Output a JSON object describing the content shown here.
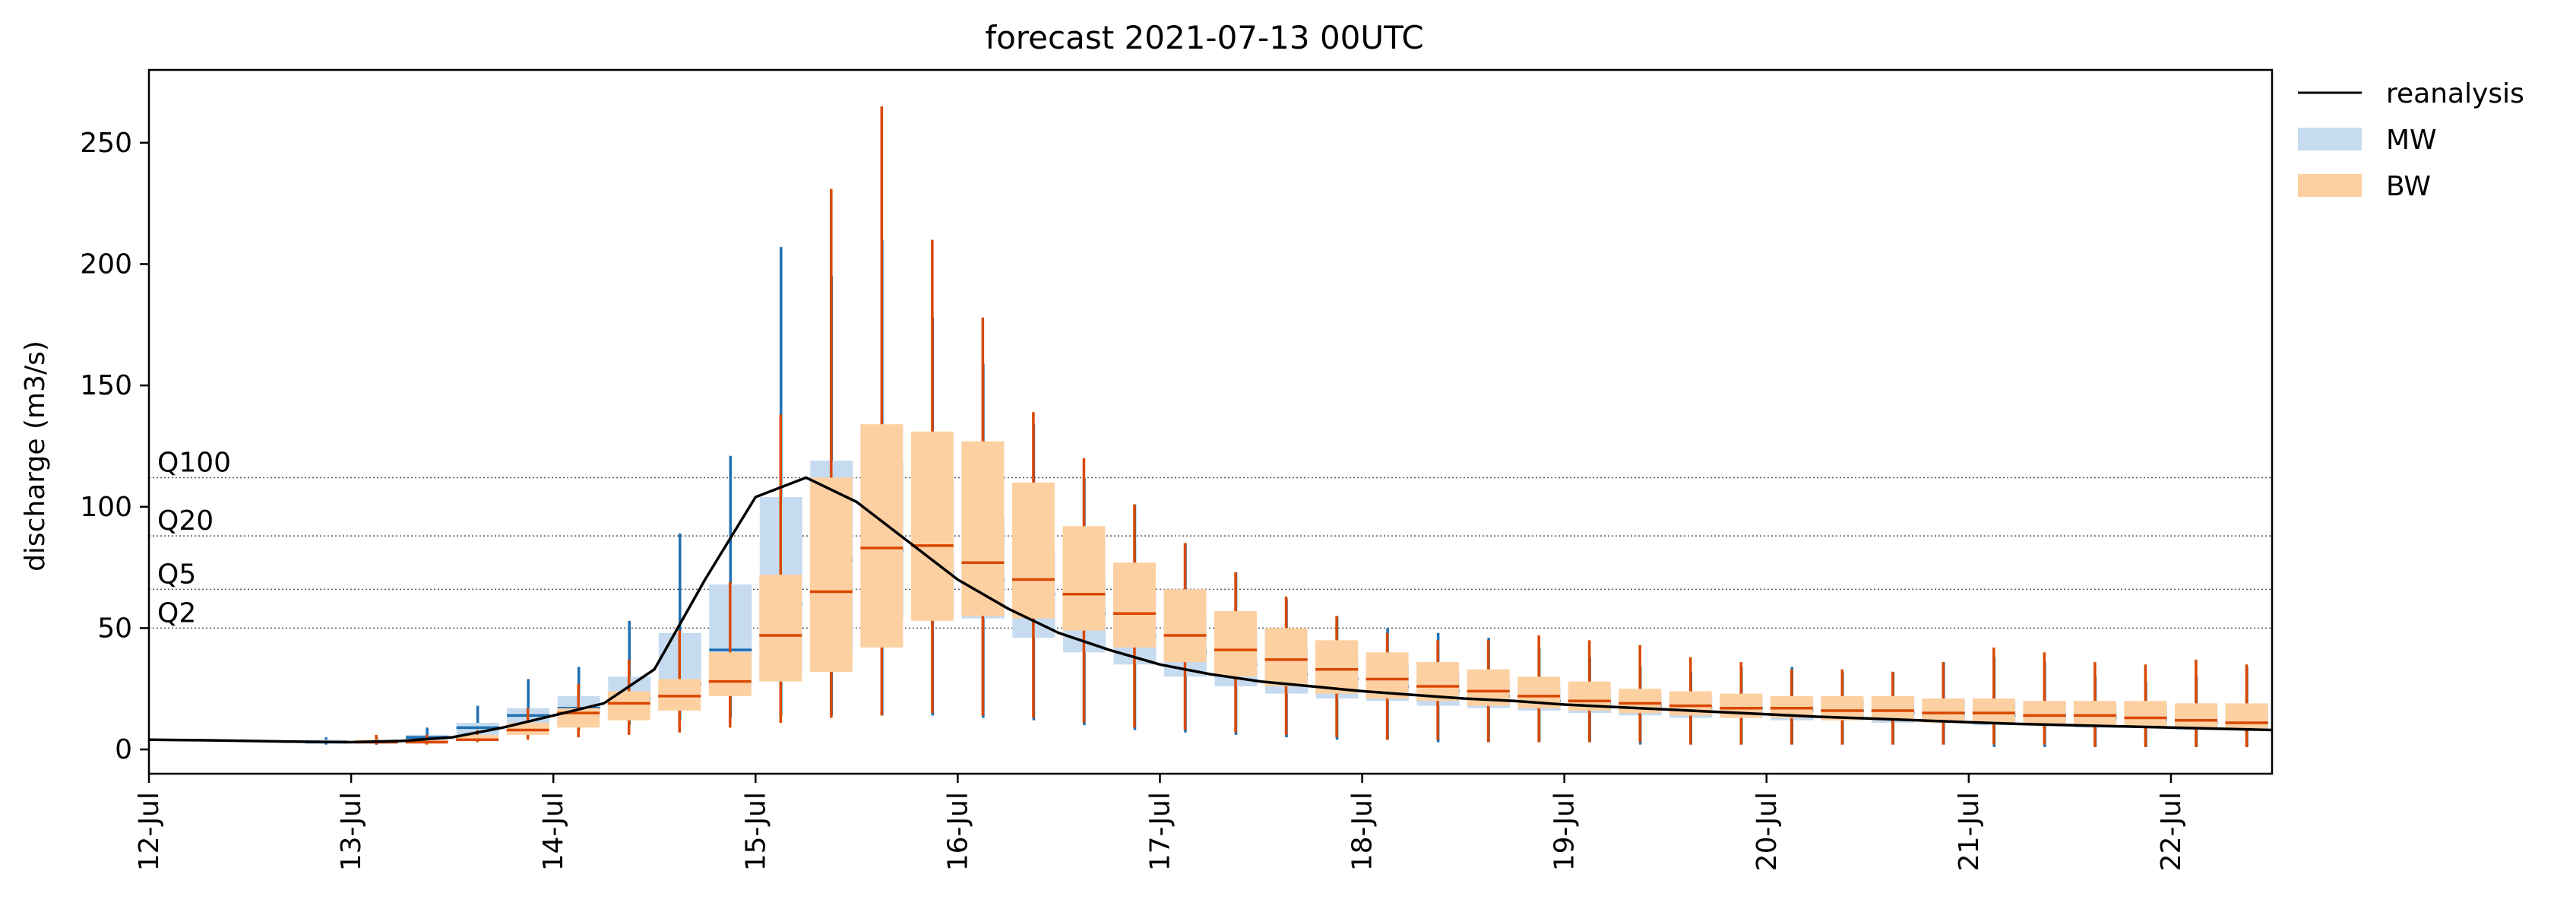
{
  "chart_data": {
    "type": "box",
    "title": "forecast 2021-07-13 00UTC",
    "xlabel": "",
    "ylabel": "discharge (m3/s)",
    "xlim": [
      "2021-07-12T00:00",
      "2021-07-22T12:00"
    ],
    "ylim": [
      -10,
      280
    ],
    "yticks": [
      0,
      50,
      100,
      150,
      200,
      250
    ],
    "xtick_labels": [
      "12-Jul",
      "13-Jul",
      "14-Jul",
      "15-Jul",
      "16-Jul",
      "17-Jul",
      "18-Jul",
      "19-Jul",
      "20-Jul",
      "21-Jul",
      "22-Jul"
    ],
    "xtick_dates": [
      "2021-07-12T00:00",
      "2021-07-13T00:00",
      "2021-07-14T00:00",
      "2021-07-15T00:00",
      "2021-07-16T00:00",
      "2021-07-17T00:00",
      "2021-07-18T00:00",
      "2021-07-19T00:00",
      "2021-07-20T00:00",
      "2021-07-21T00:00",
      "2021-07-22T00:00"
    ],
    "legend_position": "outside top-right",
    "colors": {
      "reanalysis": "#000000",
      "MW_box": "#c6dbef",
      "MW_line": "#1f6fb0",
      "BW_box": "#fdd0a2",
      "BW_line": "#d94801",
      "threshold": "#555555"
    },
    "thresholds": [
      {
        "label": "Q100",
        "value": 112
      },
      {
        "label": "Q20",
        "value": 88
      },
      {
        "label": "Q5",
        "value": 66
      },
      {
        "label": "Q2",
        "value": 50
      }
    ],
    "reanalysis": {
      "name": "reanalysis",
      "x": [
        "2021-07-12T00:00",
        "2021-07-12T06:00",
        "2021-07-12T12:00",
        "2021-07-12T18:00",
        "2021-07-13T00:00",
        "2021-07-13T06:00",
        "2021-07-13T12:00",
        "2021-07-13T18:00",
        "2021-07-14T00:00",
        "2021-07-14T06:00",
        "2021-07-14T12:00",
        "2021-07-14T18:00",
        "2021-07-15T00:00",
        "2021-07-15T06:00",
        "2021-07-15T12:00",
        "2021-07-15T18:00",
        "2021-07-16T00:00",
        "2021-07-16T06:00",
        "2021-07-16T12:00",
        "2021-07-16T18:00",
        "2021-07-17T00:00",
        "2021-07-17T06:00",
        "2021-07-17T12:00",
        "2021-07-17T18:00",
        "2021-07-18T00:00",
        "2021-07-18T06:00",
        "2021-07-18T12:00",
        "2021-07-18T18:00",
        "2021-07-19T00:00",
        "2021-07-19T06:00",
        "2021-07-19T12:00",
        "2021-07-19T18:00",
        "2021-07-20T00:00",
        "2021-07-20T06:00",
        "2021-07-20T12:00",
        "2021-07-20T18:00",
        "2021-07-21T00:00",
        "2021-07-21T06:00",
        "2021-07-21T12:00",
        "2021-07-21T18:00",
        "2021-07-22T00:00",
        "2021-07-22T06:00",
        "2021-07-22T12:00"
      ],
      "y": [
        4,
        3.8,
        3.5,
        3.2,
        3,
        3.5,
        5,
        9,
        14,
        19,
        33,
        70,
        104,
        112,
        102,
        86,
        70,
        58,
        48,
        41,
        35,
        31,
        28,
        26,
        24,
        22.5,
        21,
        20,
        18.5,
        17.5,
        16.5,
        15.5,
        14.5,
        13.5,
        12.8,
        12,
        11.2,
        10.5,
        10,
        9.5,
        9,
        8.5,
        8
      ]
    },
    "series": [
      {
        "name": "MW",
        "x": [
          "2021-07-13T00:00",
          "2021-07-13T06:00",
          "2021-07-13T12:00",
          "2021-07-13T18:00",
          "2021-07-14T00:00",
          "2021-07-14T06:00",
          "2021-07-14T12:00",
          "2021-07-14T18:00",
          "2021-07-15T00:00",
          "2021-07-15T06:00",
          "2021-07-15T12:00",
          "2021-07-15T18:00",
          "2021-07-16T00:00",
          "2021-07-16T06:00",
          "2021-07-16T12:00",
          "2021-07-16T18:00",
          "2021-07-17T00:00",
          "2021-07-17T06:00",
          "2021-07-17T12:00",
          "2021-07-17T18:00",
          "2021-07-18T00:00",
          "2021-07-18T06:00",
          "2021-07-18T12:00",
          "2021-07-18T18:00",
          "2021-07-19T00:00",
          "2021-07-19T06:00",
          "2021-07-19T12:00",
          "2021-07-19T18:00",
          "2021-07-20T00:00",
          "2021-07-20T06:00",
          "2021-07-20T12:00",
          "2021-07-20T18:00",
          "2021-07-21T00:00",
          "2021-07-21T06:00",
          "2021-07-21T12:00",
          "2021-07-21T18:00",
          "2021-07-22T00:00",
          "2021-07-22T06:00",
          "2021-07-22T12:00"
        ],
        "whislo": [
          2,
          2,
          3,
          4,
          6,
          8,
          10,
          12,
          13,
          14,
          14,
          14,
          14,
          13,
          12,
          10,
          8,
          7,
          6,
          5,
          4,
          4,
          3,
          3,
          3,
          3,
          2,
          2,
          2,
          2,
          2,
          2,
          2,
          1,
          1,
          1,
          1,
          1,
          1
        ],
        "q1": [
          3,
          3,
          4,
          6,
          10,
          13,
          18,
          22,
          26,
          32,
          40,
          53,
          55,
          54,
          46,
          40,
          35,
          30,
          26,
          23,
          21,
          20,
          18,
          17,
          16,
          15,
          14,
          13,
          13,
          12,
          12,
          11,
          11,
          10,
          10,
          9,
          9,
          8,
          8
        ],
        "median": [
          3,
          3,
          5,
          9,
          14,
          17,
          21,
          27,
          41,
          60,
          78,
          82,
          73,
          70,
          64,
          56,
          47,
          40,
          35,
          31,
          29,
          26,
          24,
          22,
          20,
          19,
          18,
          17,
          17,
          16,
          16,
          15,
          15,
          14,
          14,
          13,
          12,
          11,
          11
        ],
        "q3": [
          4,
          4,
          6,
          11,
          17,
          22,
          30,
          48,
          68,
          104,
          119,
          119,
          111,
          96,
          82,
          71,
          65,
          55,
          49,
          42,
          38,
          35,
          32,
          29,
          26,
          25,
          23,
          22,
          21,
          21,
          21,
          21,
          21,
          20,
          20,
          19,
          19,
          19,
          18
        ],
        "whishi": [
          5,
          5,
          9,
          18,
          29,
          34,
          53,
          89,
          121,
          207,
          195,
          210,
          178,
          159,
          134,
          112,
          101,
          85,
          73,
          62,
          55,
          50,
          48,
          46,
          42,
          38,
          34,
          32,
          34,
          34,
          32,
          32,
          36,
          38,
          36,
          30,
          28,
          30,
          34
        ]
      },
      {
        "name": "BW",
        "x": [
          "2021-07-13T00:00",
          "2021-07-13T06:00",
          "2021-07-13T12:00",
          "2021-07-13T18:00",
          "2021-07-14T00:00",
          "2021-07-14T06:00",
          "2021-07-14T12:00",
          "2021-07-14T18:00",
          "2021-07-15T00:00",
          "2021-07-15T06:00",
          "2021-07-15T12:00",
          "2021-07-15T18:00",
          "2021-07-16T00:00",
          "2021-07-16T06:00",
          "2021-07-16T12:00",
          "2021-07-16T18:00",
          "2021-07-17T00:00",
          "2021-07-17T06:00",
          "2021-07-17T12:00",
          "2021-07-17T18:00",
          "2021-07-18T00:00",
          "2021-07-18T06:00",
          "2021-07-18T12:00",
          "2021-07-18T18:00",
          "2021-07-19T00:00",
          "2021-07-19T06:00",
          "2021-07-19T12:00",
          "2021-07-19T18:00",
          "2021-07-20T00:00",
          "2021-07-20T06:00",
          "2021-07-20T12:00",
          "2021-07-20T18:00",
          "2021-07-21T00:00",
          "2021-07-21T06:00",
          "2021-07-21T12:00",
          "2021-07-21T18:00",
          "2021-07-22T00:00",
          "2021-07-22T06:00",
          "2021-07-22T12:00"
        ],
        "whislo": [
          2,
          2,
          3,
          4,
          5,
          6,
          7,
          9,
          11,
          13,
          14,
          15,
          14,
          13,
          11,
          9,
          8,
          7,
          6,
          5,
          4,
          4,
          3,
          3,
          3,
          3,
          2,
          2,
          2,
          2,
          2,
          2,
          2,
          2,
          1,
          1,
          1,
          1,
          1
        ],
        "q1": [
          3,
          3,
          4,
          6,
          9,
          12,
          16,
          22,
          28,
          32,
          42,
          53,
          55,
          54,
          49,
          42,
          36,
          30,
          26,
          23,
          21,
          20,
          18,
          17,
          16,
          15,
          14,
          13,
          13,
          12,
          12,
          11,
          11,
          10,
          10,
          9,
          9,
          8,
          8
        ],
        "median": [
          3,
          3,
          4,
          8,
          15,
          19,
          22,
          28,
          47,
          65,
          83,
          84,
          77,
          70,
          64,
          56,
          47,
          41,
          37,
          33,
          29,
          26,
          24,
          22,
          20,
          19,
          18,
          17,
          17,
          16,
          16,
          15,
          15,
          14,
          14,
          13,
          12,
          11,
          11
        ],
        "q3": [
          4,
          4,
          6,
          11,
          17,
          24,
          29,
          40,
          72,
          112,
          134,
          131,
          127,
          110,
          92,
          77,
          66,
          57,
          50,
          45,
          40,
          36,
          33,
          30,
          28,
          25,
          24,
          23,
          22,
          22,
          22,
          21,
          21,
          20,
          20,
          20,
          19,
          19,
          18
        ],
        "whishi": [
          6,
          6,
          8,
          17,
          27,
          37,
          49,
          69,
          138,
          231,
          265,
          210,
          178,
          139,
          120,
          101,
          85,
          73,
          63,
          55,
          48,
          45,
          45,
          47,
          45,
          43,
          38,
          36,
          33,
          33,
          32,
          36,
          42,
          40,
          36,
          35,
          37,
          35,
          36
        ]
      }
    ]
  }
}
